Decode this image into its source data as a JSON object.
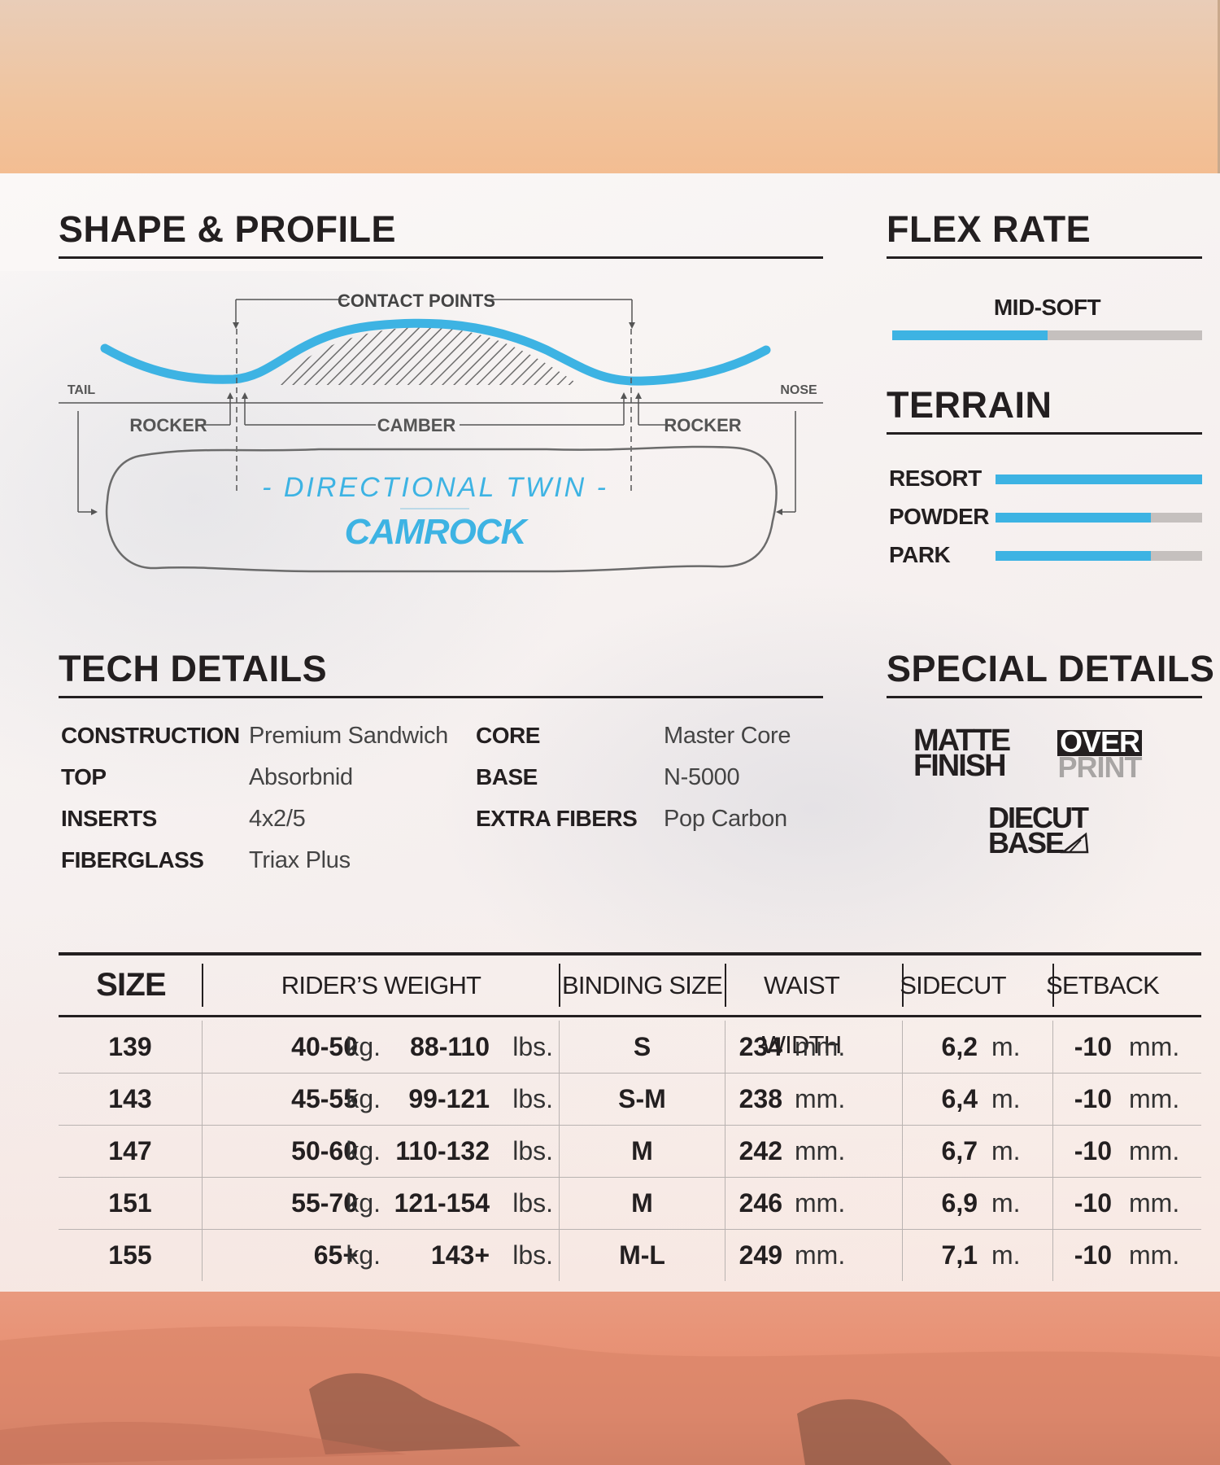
{
  "shape": {
    "heading": "SHAPE & PROFILE",
    "contact_points": "CONTACT POINTS",
    "tail": "TAIL",
    "nose": "NOSE",
    "rocker_left": "ROCKER",
    "camber": "CAMBER",
    "rocker_right": "ROCKER",
    "shape_name": "- DIRECTIONAL TWIN -",
    "profile_name": "CAMROCK",
    "accent": "#3db3e3"
  },
  "flex": {
    "heading": "FLEX RATE",
    "label": "MID-SOFT",
    "level": 0.5
  },
  "terrain": {
    "heading": "TERRAIN",
    "items": [
      {
        "label": "RESORT",
        "level": 1.0
      },
      {
        "label": "POWDER",
        "level": 0.75
      },
      {
        "label": "PARK",
        "level": 0.75
      }
    ]
  },
  "tech": {
    "heading": "TECH DETAILS",
    "left": [
      {
        "key": "CONSTRUCTION",
        "value": "Premium Sandwich"
      },
      {
        "key": "TOP",
        "value": "Absorbnid"
      },
      {
        "key": "INSERTS",
        "value": "4x2/5"
      },
      {
        "key": "FIBERGLASS",
        "value": "Triax Plus"
      }
    ],
    "right": [
      {
        "key": "CORE",
        "value": "Master Core"
      },
      {
        "key": "BASE",
        "value": "N-5000"
      },
      {
        "key": "EXTRA FIBERS",
        "value": "Pop Carbon"
      }
    ]
  },
  "special": {
    "heading": "SPECIAL DETAILS",
    "matte_1": "MATTE",
    "matte_2": "FINISH",
    "over": "OVER",
    "print": "PRINT",
    "diecut": "DIECUT",
    "base": "BASE"
  },
  "table": {
    "headers": {
      "size": "SIZE",
      "weight": "RIDER’S WEIGHT",
      "binding": "BINDING SIZE",
      "waist": "WAIST WIDTH",
      "sidecut": "SIDECUT",
      "setback": "SETBACK"
    },
    "units": {
      "kg": "kg.",
      "lbs": "lbs.",
      "mm": "mm.",
      "m": "m."
    },
    "rows": [
      {
        "size": "139",
        "kg": "40-50",
        "lbs": "88-110",
        "binding": "S",
        "waist": "234",
        "sidecut": "6,2",
        "setback": "-10"
      },
      {
        "size": "143",
        "kg": "45-55",
        "lbs": "99-121",
        "binding": "S-M",
        "waist": "238",
        "sidecut": "6,4",
        "setback": "-10"
      },
      {
        "size": "147",
        "kg": "50-60",
        "lbs": "110-132",
        "binding": "M",
        "waist": "242",
        "sidecut": "6,7",
        "setback": "-10"
      },
      {
        "size": "151",
        "kg": "55-70",
        "lbs": "121-154",
        "binding": "M",
        "waist": "246",
        "sidecut": "6,9",
        "setback": "-10"
      },
      {
        "size": "155",
        "kg": "65+",
        "lbs": "143+",
        "binding": "M-L",
        "waist": "249",
        "sidecut": "7,1",
        "setback": "-10"
      }
    ]
  }
}
